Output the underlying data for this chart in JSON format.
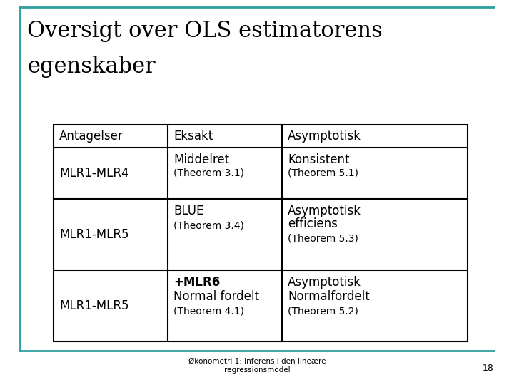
{
  "title_line1": "Oversigt over OLS estimatorens",
  "title_line2": "egenskaber",
  "title_fontsize": 22,
  "title_font": "serif",
  "bg_color": "#ffffff",
  "border_color": "#2e9e9e",
  "page_number": "18",
  "footer_text": "Økonometri 1: Inferens i den lineære\nregressionsmodel",
  "table": {
    "col_headers": [
      "Antagelser",
      "Eksakt",
      "Asymptotisk"
    ],
    "rows": [
      {
        "col0": "MLR1-MLR4",
        "col1_main": "Middelret",
        "col1_sub": "(Theorem 3.1)",
        "col2_main": "Konsistent",
        "col2_sub": "(Theorem 5.1)"
      },
      {
        "col0": "MLR1-MLR5",
        "col1_main": "BLUE",
        "col1_sub": "(Theorem 3.4)",
        "col2_main_line1": "Asymptotisk",
        "col2_main_line2": "efficiens",
        "col2_sub": "(Theorem 5.3)"
      },
      {
        "col0": "MLR1-MLR5",
        "col1_bold": "+MLR6",
        "col1_main": "Normal fordelt",
        "col1_sub": "(Theorem 4.1)",
        "col2_main_line1": "Asymptotisk",
        "col2_main_line2": "Normalfordelt",
        "col2_sub": "(Theorem 5.2)"
      }
    ],
    "header_fontsize": 12,
    "cell_fontsize": 12,
    "sub_fontsize": 10
  }
}
